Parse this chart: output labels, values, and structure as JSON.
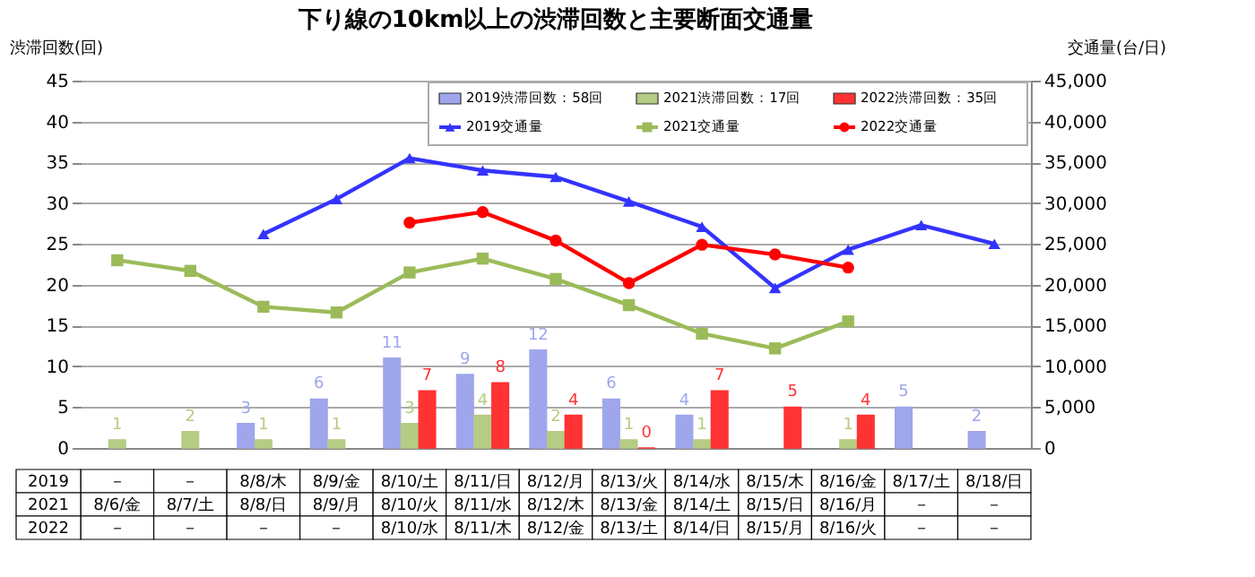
{
  "chart_data": {
    "type": "bar",
    "title": "下り線の10km以上の渋滞回数と主要断面交通量",
    "ylabel": "渋滞回数(回)",
    "y2label": "交通量(台/日)",
    "categories": [
      null,
      null,
      null,
      null,
      null,
      null,
      null,
      null,
      null,
      null,
      null,
      null,
      null
    ],
    "series": [
      {
        "name": "2019渋滞回数：58回",
        "value_labels": [
          null,
          null,
          "3",
          "6",
          "11",
          "9",
          "12",
          "6",
          "4",
          null,
          null,
          "5",
          "2"
        ],
        "color": "#9fa6ec",
        "values": [
          null,
          null,
          3,
          6,
          11,
          9,
          12,
          6,
          4,
          null,
          null,
          5,
          2
        ]
      },
      {
        "name": "2021渋滞回数：17回",
        "value_labels": [
          "1",
          "2",
          "1",
          "1",
          "3",
          "4",
          "2",
          "1",
          "1",
          null,
          "1",
          null,
          null
        ],
        "color": "#b5cc84",
        "values": [
          1,
          2,
          1,
          1,
          3,
          4,
          2,
          1,
          1,
          null,
          1,
          null,
          null
        ]
      },
      {
        "name": "2022渋滞回数：35回",
        "value_labels": [
          null,
          null,
          null,
          null,
          "7",
          "8",
          "4",
          "0",
          "7",
          "5",
          "4",
          null,
          null
        ],
        "color": "#ff3333",
        "values": [
          null,
          null,
          null,
          null,
          7,
          8,
          4,
          0,
          7,
          5,
          4,
          null,
          null
        ]
      },
      {
        "name": "2019交通量",
        "type": "line",
        "axis": "y2",
        "marker": "triangle",
        "color": "#3333ff",
        "values": [
          null,
          null,
          26200,
          30500,
          35500,
          34000,
          33200,
          30200,
          27100,
          19600,
          24300,
          27300,
          25000
        ]
      },
      {
        "name": "2021交通量",
        "type": "line",
        "axis": "y2",
        "marker": "square",
        "color": "#9bbb59",
        "values": [
          23000,
          21700,
          17300,
          16600,
          21500,
          23200,
          20700,
          17500,
          14000,
          12200,
          15500,
          null,
          null
        ]
      },
      {
        "name": "2022交通量",
        "type": "line",
        "axis": "y2",
        "marker": "circle",
        "color": "#ff0000",
        "values": [
          null,
          null,
          null,
          null,
          27600,
          28900,
          25400,
          20200,
          24900,
          23700,
          22100,
          null,
          null
        ]
      }
    ],
    "legend": "top right",
    "grid": "y",
    "line_style": "solid",
    "ylim": [
      0,
      45
    ],
    "yticks": [
      0,
      5,
      10,
      15,
      20,
      25,
      30,
      35,
      40,
      45
    ],
    "y2lim": [
      0,
      45000
    ],
    "y2ticks": [
      0,
      {
        "value": 5000,
        "label": "5,000"
      },
      {
        "value": 10000,
        "label": "10,000"
      },
      {
        "value": 15000,
        "label": "15,000"
      },
      {
        "value": 20000,
        "label": "20,000"
      },
      {
        "value": 25000,
        "label": "25,000"
      },
      {
        "value": 30000,
        "label": "30,000"
      },
      {
        "value": 35000,
        "label": "35,000"
      },
      {
        "value": 40000,
        "label": "40,000"
      },
      {
        "value": 45000,
        "label": "45,000"
      }
    ],
    "annotations": [
      "2019",
      "－",
      "－",
      "8/8/木",
      "8/9/金",
      "8/10/土",
      "8/11/日",
      "8/12/月",
      "8/13/火",
      "8/14/水",
      "8/15/木",
      "8/16/金",
      "8/17/土",
      "8/18/日",
      "2021",
      "8/6/金",
      "8/7/土",
      "8/8/日",
      "8/9/月",
      "8/10/火",
      "8/11/水",
      "8/12/木",
      "8/13/金",
      "8/14/土",
      "8/15/日",
      "8/16/月",
      "－",
      "－",
      "2022",
      "－",
      "－",
      "－",
      "－",
      "8/10/水",
      "8/11/木",
      "8/12/金",
      "8/13/土",
      "8/14/日",
      "8/15/月",
      "8/16/火",
      "－",
      "－"
    ]
  }
}
